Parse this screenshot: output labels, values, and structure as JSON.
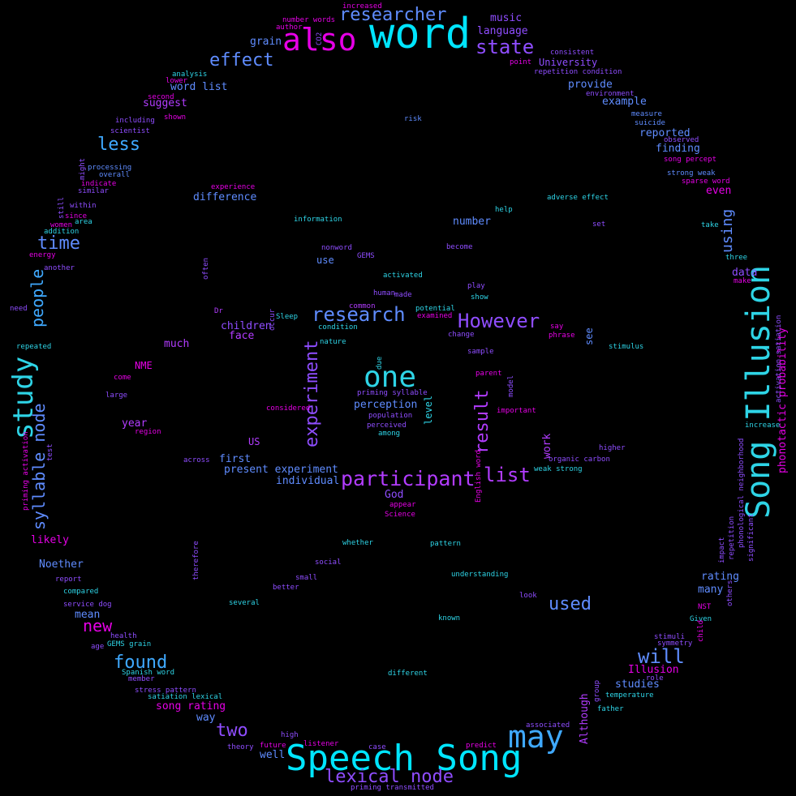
{
  "palette": {
    "cyan": "#00e5ff",
    "sky": "#3fa9ff",
    "blue": "#5f8cff",
    "violet": "#8f4dff",
    "purple": "#b23cff",
    "magenta": "#e600e6",
    "aqua": "#2ed4e6"
  },
  "words": [
    {
      "text": "word",
      "color": "cyan"
    },
    {
      "text": "also",
      "color": "magenta"
    },
    {
      "text": "Speech Song",
      "color": "cyan"
    },
    {
      "text": "Song Illusion",
      "color": "aqua"
    },
    {
      "text": "study",
      "color": "aqua"
    },
    {
      "text": "one",
      "color": "aqua"
    },
    {
      "text": "may",
      "color": "sky"
    },
    {
      "text": "participant",
      "color": "purple"
    },
    {
      "text": "researcher",
      "color": "blue"
    },
    {
      "text": "state",
      "color": "violet"
    },
    {
      "text": "effect",
      "color": "blue"
    },
    {
      "text": "research",
      "color": "blue"
    },
    {
      "text": "However",
      "color": "violet"
    },
    {
      "text": "experiment",
      "color": "violet"
    },
    {
      "text": "result",
      "color": "purple"
    },
    {
      "text": "list",
      "color": "purple"
    },
    {
      "text": "lexical node",
      "color": "violet"
    },
    {
      "text": "syllable node",
      "color": "blue"
    },
    {
      "text": "people",
      "color": "sky"
    },
    {
      "text": "time",
      "color": "blue"
    },
    {
      "text": "less",
      "color": "sky"
    },
    {
      "text": "used",
      "color": "blue"
    },
    {
      "text": "will",
      "color": "blue"
    },
    {
      "text": "two",
      "color": "violet"
    },
    {
      "text": "found",
      "color": "sky"
    },
    {
      "text": "new",
      "color": "magenta"
    },
    {
      "text": "using",
      "color": "blue"
    },
    {
      "text": "music",
      "color": "violet"
    },
    {
      "text": "language",
      "color": "violet"
    },
    {
      "text": "University",
      "color": "violet"
    },
    {
      "text": "grain",
      "color": "blue"
    },
    {
      "text": "word list",
      "color": "blue"
    },
    {
      "text": "suggest",
      "color": "purple"
    },
    {
      "text": "provide",
      "color": "blue"
    },
    {
      "text": "example",
      "color": "blue"
    },
    {
      "text": "reported",
      "color": "blue"
    },
    {
      "text": "finding",
      "color": "blue"
    },
    {
      "text": "difference",
      "color": "blue"
    },
    {
      "text": "number",
      "color": "blue"
    },
    {
      "text": "use",
      "color": "blue"
    },
    {
      "text": "children",
      "color": "violet"
    },
    {
      "text": "face",
      "color": "purple"
    },
    {
      "text": "much",
      "color": "purple"
    },
    {
      "text": "perception",
      "color": "blue"
    },
    {
      "text": "NME",
      "color": "magenta"
    },
    {
      "text": "year",
      "color": "purple"
    },
    {
      "text": "US",
      "color": "purple"
    },
    {
      "text": "first",
      "color": "blue"
    },
    {
      "text": "present experiment",
      "color": "blue"
    },
    {
      "text": "individual",
      "color": "blue"
    },
    {
      "text": "God",
      "color": "violet"
    },
    {
      "text": "likely",
      "color": "magenta"
    },
    {
      "text": "Noether",
      "color": "blue"
    },
    {
      "text": "mean",
      "color": "blue"
    },
    {
      "text": "song rating",
      "color": "magenta"
    },
    {
      "text": "way",
      "color": "blue"
    },
    {
      "text": "well",
      "color": "blue"
    },
    {
      "text": "data",
      "color": "violet"
    },
    {
      "text": "even",
      "color": "magenta"
    },
    {
      "text": "rating",
      "color": "blue"
    },
    {
      "text": "many",
      "color": "blue"
    },
    {
      "text": "studies",
      "color": "blue"
    },
    {
      "text": "Illusion",
      "color": "magenta"
    },
    {
      "text": "see",
      "color": "blue"
    },
    {
      "text": "level",
      "color": "aqua"
    },
    {
      "text": "work",
      "color": "purple"
    },
    {
      "text": "Although",
      "color": "purple"
    },
    {
      "text": "phonotactic probability",
      "color": "magenta"
    },
    {
      "text": "increased",
      "color": "magenta"
    },
    {
      "text": "number words",
      "color": "magenta"
    },
    {
      "text": "author",
      "color": "magenta"
    },
    {
      "text": "CO2",
      "color": "violet"
    },
    {
      "text": "consistent",
      "color": "violet"
    },
    {
      "text": "point",
      "color": "magenta"
    },
    {
      "text": "repetition condition",
      "color": "violet"
    },
    {
      "text": "analysis",
      "color": "aqua"
    },
    {
      "text": "lower",
      "color": "magenta"
    },
    {
      "text": "environment",
      "color": "violet"
    },
    {
      "text": "second",
      "color": "magenta"
    },
    {
      "text": "shown",
      "color": "magenta"
    },
    {
      "text": "measure",
      "color": "blue"
    },
    {
      "text": "including",
      "color": "violet"
    },
    {
      "text": "risk",
      "color": "blue"
    },
    {
      "text": "suicide",
      "color": "blue"
    },
    {
      "text": "scientist",
      "color": "violet"
    },
    {
      "text": "observed",
      "color": "violet"
    },
    {
      "text": "song percept",
      "color": "magenta"
    },
    {
      "text": "might",
      "color": "violet"
    },
    {
      "text": "processing",
      "color": "blue"
    },
    {
      "text": "overall",
      "color": "blue"
    },
    {
      "text": "strong weak",
      "color": "blue"
    },
    {
      "text": "indicate",
      "color": "magenta"
    },
    {
      "text": "sparse word",
      "color": "magenta"
    },
    {
      "text": "similar",
      "color": "violet"
    },
    {
      "text": "experience",
      "color": "magenta"
    },
    {
      "text": "still",
      "color": "violet"
    },
    {
      "text": "within",
      "color": "violet"
    },
    {
      "text": "adverse effect",
      "color": "aqua"
    },
    {
      "text": "help",
      "color": "aqua"
    },
    {
      "text": "since",
      "color": "magenta"
    },
    {
      "text": "information",
      "color": "aqua"
    },
    {
      "text": "set",
      "color": "violet"
    },
    {
      "text": "take",
      "color": "aqua"
    },
    {
      "text": "women",
      "color": "magenta"
    },
    {
      "text": "area",
      "color": "aqua"
    },
    {
      "text": "addition",
      "color": "aqua"
    },
    {
      "text": "energy",
      "color": "magenta"
    },
    {
      "text": "nonword",
      "color": "violet"
    },
    {
      "text": "become",
      "color": "violet"
    },
    {
      "text": "GEMS",
      "color": "violet"
    },
    {
      "text": "three",
      "color": "aqua"
    },
    {
      "text": "another",
      "color": "violet"
    },
    {
      "text": "often",
      "color": "violet"
    },
    {
      "text": "activated",
      "color": "aqua"
    },
    {
      "text": "make",
      "color": "magenta"
    },
    {
      "text": "play",
      "color": "violet"
    },
    {
      "text": "human",
      "color": "violet"
    },
    {
      "text": "made",
      "color": "violet"
    },
    {
      "text": "show",
      "color": "aqua"
    },
    {
      "text": "need",
      "color": "violet"
    },
    {
      "text": "Dr",
      "color": "purple"
    },
    {
      "text": "common",
      "color": "purple"
    },
    {
      "text": "potential",
      "color": "aqua"
    },
    {
      "text": "occur",
      "color": "violet"
    },
    {
      "text": "Sleep",
      "color": "aqua"
    },
    {
      "text": "examined",
      "color": "magenta"
    },
    {
      "text": "say",
      "color": "magenta"
    },
    {
      "text": "condition",
      "color": "aqua"
    },
    {
      "text": "phrase",
      "color": "magenta"
    },
    {
      "text": "change",
      "color": "violet"
    },
    {
      "text": "nature",
      "color": "aqua"
    },
    {
      "text": "stimulus",
      "color": "aqua"
    },
    {
      "text": "repeated",
      "color": "aqua"
    },
    {
      "text": "sample",
      "color": "violet"
    },
    {
      "text": "due",
      "color": "aqua"
    },
    {
      "text": "parent",
      "color": "magenta"
    },
    {
      "text": "activation satiation",
      "color": "violet"
    },
    {
      "text": "come",
      "color": "magenta"
    },
    {
      "text": "model",
      "color": "violet"
    },
    {
      "text": "priming syllable",
      "color": "violet"
    },
    {
      "text": "large",
      "color": "violet"
    },
    {
      "text": "population",
      "color": "violet"
    },
    {
      "text": "considered",
      "color": "magenta"
    },
    {
      "text": "important",
      "color": "magenta"
    },
    {
      "text": "perceived",
      "color": "violet"
    },
    {
      "text": "increase",
      "color": "aqua"
    },
    {
      "text": "region",
      "color": "magenta"
    },
    {
      "text": "among",
      "color": "aqua"
    },
    {
      "text": "test",
      "color": "violet"
    },
    {
      "text": "higher",
      "color": "violet"
    },
    {
      "text": "priming activation",
      "color": "magenta"
    },
    {
      "text": "across",
      "color": "violet"
    },
    {
      "text": "organic carbon",
      "color": "violet"
    },
    {
      "text": "weak strong",
      "color": "aqua"
    },
    {
      "text": "English word",
      "color": "magenta"
    },
    {
      "text": "phonological neighborhood",
      "color": "violet"
    },
    {
      "text": "appear",
      "color": "magenta"
    },
    {
      "text": "Science",
      "color": "magenta"
    },
    {
      "text": "significant",
      "color": "violet"
    },
    {
      "text": "repetition",
      "color": "violet"
    },
    {
      "text": "whether",
      "color": "aqua"
    },
    {
      "text": "pattern",
      "color": "aqua"
    },
    {
      "text": "therefore",
      "color": "violet"
    },
    {
      "text": "impact",
      "color": "violet"
    },
    {
      "text": "social",
      "color": "violet"
    },
    {
      "text": "report",
      "color": "violet"
    },
    {
      "text": "small",
      "color": "violet"
    },
    {
      "text": "understanding",
      "color": "aqua"
    },
    {
      "text": "others",
      "color": "violet"
    },
    {
      "text": "better",
      "color": "violet"
    },
    {
      "text": "compared",
      "color": "aqua"
    },
    {
      "text": "look",
      "color": "violet"
    },
    {
      "text": "several",
      "color": "aqua"
    },
    {
      "text": "service dog",
      "color": "violet"
    },
    {
      "text": "NST",
      "color": "magenta"
    },
    {
      "text": "known",
      "color": "aqua"
    },
    {
      "text": "Given",
      "color": "aqua"
    },
    {
      "text": "health",
      "color": "violet"
    },
    {
      "text": "child",
      "color": "magenta"
    },
    {
      "text": "stimuli",
      "color": "violet"
    },
    {
      "text": "age",
      "color": "violet"
    },
    {
      "text": "GEMS grain",
      "color": "aqua"
    },
    {
      "text": "symmetry",
      "color": "violet"
    },
    {
      "text": "Spanish word",
      "color": "aqua"
    },
    {
      "text": "different",
      "color": "aqua"
    },
    {
      "text": "member",
      "color": "violet"
    },
    {
      "text": "role",
      "color": "violet"
    },
    {
      "text": "group",
      "color": "violet"
    },
    {
      "text": "stress pattern",
      "color": "violet"
    },
    {
      "text": "satiation lexical",
      "color": "aqua"
    },
    {
      "text": "temperature",
      "color": "aqua"
    },
    {
      "text": "father",
      "color": "aqua"
    },
    {
      "text": "associated",
      "color": "violet"
    },
    {
      "text": "high",
      "color": "violet"
    },
    {
      "text": "future",
      "color": "magenta"
    },
    {
      "text": "listener",
      "color": "magenta"
    },
    {
      "text": "case",
      "color": "violet"
    },
    {
      "text": "predict",
      "color": "magenta"
    },
    {
      "text": "theory",
      "color": "violet"
    },
    {
      "text": "priming transmitted",
      "color": "violet"
    }
  ]
}
